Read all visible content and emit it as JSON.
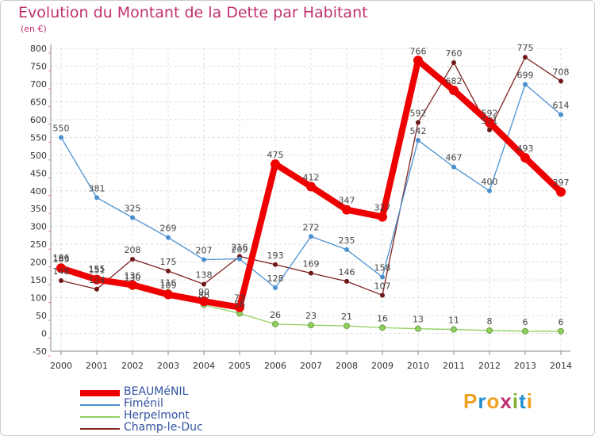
{
  "title": "Evolution du Montant de la Dette par Habitant",
  "unit": "(en €)",
  "logo": {
    "text": "Proxiti",
    "colors": [
      "#f0a020",
      "#2090d0",
      "#f0a020",
      "#c03070",
      "#80b030",
      "#2090d0",
      "#f0a020"
    ]
  },
  "chart_data": {
    "type": "line",
    "x": [
      "2000",
      "2001",
      "2002",
      "2003",
      "2004",
      "2005",
      "2006",
      "2007",
      "2008",
      "2009",
      "2010",
      "2011",
      "2012",
      "2013",
      "2014"
    ],
    "ylim": [
      -50,
      800
    ],
    "yticks": [
      -50,
      0,
      50,
      100,
      150,
      200,
      250,
      300,
      350,
      400,
      450,
      500,
      550,
      600,
      650,
      700,
      750,
      800
    ],
    "grid": true,
    "legend_position": "bottom-left",
    "series": [
      {
        "name": "BEAUMéNIL",
        "color": "#ee0000",
        "values": [
          183,
          151,
          136,
          109,
          90,
          73,
          475,
          412,
          347,
          327,
          766,
          682,
          592,
          493,
          397
        ]
      },
      {
        "name": "Fiménil",
        "color": "#4a90d0",
        "values": [
          550,
          381,
          325,
          269,
          207,
          209,
          128,
          272,
          235,
          158,
          542,
          467,
          400,
          699,
          614
        ]
      },
      {
        "name": "Herpelmont",
        "color": "#90d060",
        "values": [
          186,
          155,
          130,
          116,
          80,
          56,
          26,
          23,
          21,
          16,
          13,
          11,
          8,
          6,
          6
        ]
      },
      {
        "name": "Champ-le-Duc",
        "color": "#802020",
        "values": [
          148,
          124,
          208,
          175,
          138,
          216,
          193,
          169,
          146,
          107,
          592,
          760,
          571,
          775,
          708
        ]
      }
    ]
  }
}
